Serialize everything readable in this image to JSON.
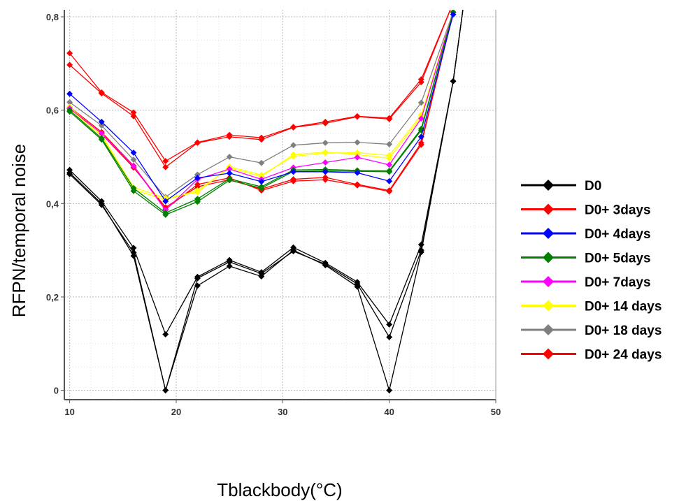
{
  "chart_data": {
    "type": "line",
    "xlabel": "Tblackbody(°C)",
    "ylabel": "RFPN/temporal noise",
    "xlim": [
      9.5,
      50
    ],
    "ylim": [
      -0.02,
      0.815
    ],
    "x_ticks": [
      "10",
      "20",
      "30",
      "40",
      "50"
    ],
    "y_ticks": [
      "0",
      "0,2",
      "0,4",
      "0,6",
      "0,8"
    ],
    "grid": "dotted",
    "legend_position": "right",
    "series": [
      {
        "name": "D0",
        "color": "#000000",
        "x": [
          10,
          13,
          16,
          19,
          22,
          25,
          28,
          31,
          34,
          37,
          40,
          43,
          46,
          47
        ],
        "curves": [
          [
            0.472,
            0.405,
            0.305,
            0.12,
            0.243,
            0.279,
            0.253,
            0.306,
            0.273,
            0.232,
            0.141,
            0.312,
            0.662,
            0.83
          ],
          [
            0.463,
            0.397,
            0.295,
            0.0,
            0.224,
            0.266,
            0.244,
            0.3,
            0.268,
            0.222,
            0.0,
            0.296,
            0.662,
            0.83
          ],
          [
            0.466,
            0.4,
            0.288,
            0.0,
            0.24,
            0.275,
            0.25,
            0.298,
            0.27,
            0.228,
            0.114,
            0.3,
            0.662,
            0.83
          ]
        ]
      },
      {
        "name": "D0+ 3days",
        "color": "#ff0000",
        "x": [
          10,
          13,
          16,
          19,
          22,
          25,
          28,
          31,
          34,
          37,
          40,
          43,
          46
        ],
        "curves": [
          [
            0.722,
            0.638,
            0.595,
            0.491,
            0.531,
            0.547,
            0.541,
            0.564,
            0.575,
            0.587,
            0.583,
            0.666,
            0.83
          ],
          [
            0.697,
            0.636,
            0.587,
            0.478,
            0.53,
            0.543,
            0.537,
            0.563,
            0.572,
            0.586,
            0.581,
            0.66,
            0.83
          ]
        ]
      },
      {
        "name": "D0+ 4days",
        "color": "#0000ff",
        "x": [
          10,
          13,
          16,
          19,
          22,
          25,
          28,
          31,
          34,
          37,
          40,
          43,
          46
        ],
        "curves": [
          [
            0.635,
            0.575,
            0.509,
            0.405,
            0.455,
            0.465,
            0.447,
            0.468,
            0.468,
            0.466,
            0.448,
            0.543,
            0.805
          ]
        ]
      },
      {
        "name": "D0+ 5days",
        "color": "#008000",
        "x": [
          10,
          13,
          16,
          19,
          22,
          25,
          28,
          31,
          34,
          37,
          40,
          43,
          46
        ],
        "curves": [
          [
            0.597,
            0.537,
            0.427,
            0.376,
            0.404,
            0.45,
            0.433,
            0.469,
            0.47,
            0.469,
            0.468,
            0.557,
            0.81
          ],
          [
            0.6,
            0.54,
            0.433,
            0.38,
            0.41,
            0.453,
            0.436,
            0.472,
            0.473,
            0.471,
            0.47,
            0.56,
            0.81
          ]
        ]
      },
      {
        "name": "D0+ 7days",
        "color": "#ff00ff",
        "x": [
          10,
          13,
          16,
          19,
          22,
          25,
          28,
          31,
          34,
          37,
          40,
          43,
          46
        ],
        "curves": [
          [
            0.604,
            0.55,
            0.48,
            0.386,
            0.452,
            0.474,
            0.452,
            0.477,
            0.488,
            0.499,
            0.483,
            0.582,
            0.81
          ]
        ]
      },
      {
        "name": "D0+ 14 days",
        "color": "#ffff00",
        "x": [
          10,
          13,
          16,
          19,
          22,
          25,
          28,
          31,
          34,
          37,
          40,
          43,
          46
        ],
        "curves": [
          [
            0.607,
            0.547,
            0.435,
            0.412,
            0.424,
            0.479,
            0.461,
            0.501,
            0.508,
            0.509,
            0.503,
            0.59,
            0.81
          ],
          [
            0.603,
            0.544,
            0.43,
            0.408,
            0.428,
            0.476,
            0.458,
            0.505,
            0.51,
            0.505,
            0.497,
            0.585,
            0.81
          ]
        ]
      },
      {
        "name": "D0+ 18 days",
        "color": "#808080",
        "x": [
          10,
          13,
          16,
          19,
          22,
          25,
          28,
          31,
          34,
          37,
          40,
          43,
          46
        ],
        "curves": [
          [
            0.617,
            0.567,
            0.494,
            0.414,
            0.462,
            0.5,
            0.487,
            0.525,
            0.53,
            0.531,
            0.527,
            0.616,
            0.81
          ]
        ]
      },
      {
        "name": "D0+ 24 days",
        "color": "#ff0000",
        "x": [
          10,
          13,
          16,
          19,
          22,
          25,
          28,
          31,
          34,
          37,
          40,
          43,
          46
        ],
        "curves": [
          [
            0.607,
            0.553,
            0.481,
            0.388,
            0.441,
            0.455,
            0.428,
            0.448,
            0.451,
            0.439,
            0.426,
            0.526,
            0.81
          ],
          [
            0.603,
            0.549,
            0.477,
            0.392,
            0.436,
            0.451,
            0.431,
            0.452,
            0.456,
            0.441,
            0.428,
            0.53,
            0.81
          ]
        ]
      }
    ]
  }
}
